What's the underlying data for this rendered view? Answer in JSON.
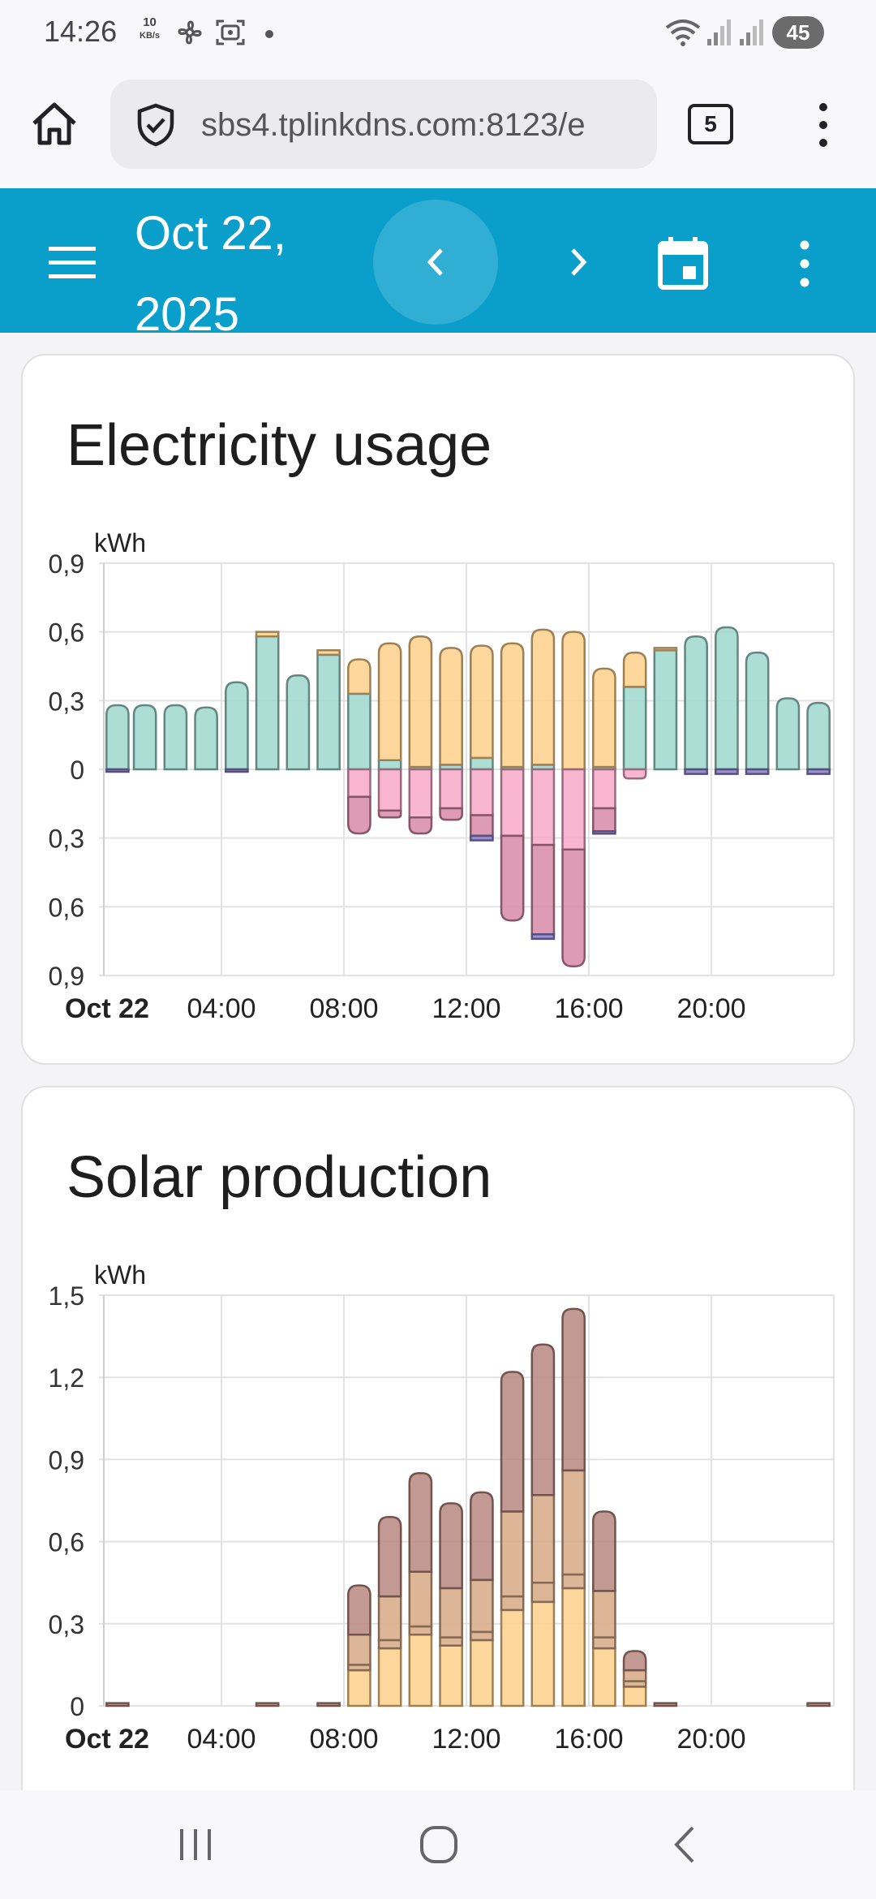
{
  "status_bar": {
    "time": "14:26",
    "speed_value": "10",
    "speed_unit": "KB/s",
    "battery": "45"
  },
  "browser": {
    "url": "sbs4.tplinkdns.com:8123/e",
    "tab_count": "5"
  },
  "header": {
    "date_line1": "Oct 22,",
    "date_line2": "2025"
  },
  "colors": {
    "header_bg": "#0a9fcb",
    "grid_consumption": "#9fd8cf",
    "solar": "#fdd08a",
    "battery_out": "#f7a9c9",
    "battery_in": "#d88aa8",
    "grid_in_strip": "#8a7fcf",
    "solar_dark": "#b88780",
    "solar_mid": "#d6a985"
  },
  "electricity_chart": {
    "title": "Electricity usage",
    "unit": "kWh",
    "y_ticks": [
      "0,9",
      "0,6",
      "0,3",
      "0",
      "0,3",
      "0,6",
      "0,9"
    ],
    "x_ticks": [
      "Oct 22",
      "04:00",
      "08:00",
      "12:00",
      "16:00",
      "20:00"
    ],
    "chart_data": {
      "type": "bar",
      "categories": [
        "00:00",
        "01:00",
        "02:00",
        "03:00",
        "04:00",
        "05:00",
        "06:00",
        "07:00",
        "08:00",
        "09:00",
        "10:00",
        "11:00",
        "12:00",
        "13:00",
        "14:00",
        "15:00",
        "16:00",
        "17:00",
        "18:00",
        "19:00",
        "20:00",
        "21:00",
        "22:00",
        "23:00"
      ],
      "ylim": [
        -0.9,
        0.9
      ],
      "series": [
        {
          "values": [
            0.28,
            0.28,
            0.28,
            0.27,
            0.38,
            0.58,
            0.41,
            0.5,
            0.33,
            0.04,
            0.01,
            0.02,
            0.05,
            0.01,
            0.02,
            0,
            0.01,
            0.36,
            0.52,
            0.58,
            0.62,
            0.51,
            0.31,
            0.29
          ]
        },
        {
          "values": [
            0,
            0,
            0,
            0,
            0,
            0.02,
            0,
            0.02,
            0.15,
            0.51,
            0.57,
            0.51,
            0.49,
            0.54,
            0.59,
            0.6,
            0.43,
            0.15,
            0.01,
            0,
            0,
            0,
            0,
            0
          ]
        },
        {
          "values": [
            0,
            0,
            0,
            0,
            0,
            0,
            0,
            0,
            -0.12,
            -0.18,
            -0.21,
            -0.17,
            -0.2,
            -0.29,
            -0.33,
            -0.35,
            -0.17,
            -0.04,
            0,
            0,
            0,
            0,
            0,
            0
          ]
        },
        {
          "values": [
            0,
            0,
            0,
            0,
            0,
            0,
            0,
            0,
            -0.16,
            -0.03,
            -0.07,
            -0.05,
            -0.09,
            -0.37,
            -0.39,
            -0.51,
            -0.1,
            0,
            0,
            0,
            0,
            0,
            0,
            0
          ]
        },
        {
          "values": [
            -0.01,
            0,
            0,
            0,
            -0.01,
            0,
            0,
            0,
            0,
            0,
            0,
            0,
            -0.02,
            0,
            -0.02,
            0,
            -0.01,
            0,
            0,
            -0.02,
            -0.02,
            -0.02,
            0,
            -0.02
          ]
        }
      ]
    }
  },
  "solar_chart": {
    "title": "Solar production",
    "unit": "kWh",
    "y_ticks": [
      "1,5",
      "1,2",
      "0,9",
      "0,6",
      "0,3",
      "0"
    ],
    "x_ticks": [
      "Oct 22",
      "04:00",
      "08:00",
      "12:00",
      "16:00",
      "20:00"
    ],
    "chart_data": {
      "type": "bar",
      "categories": [
        "00:00",
        "01:00",
        "02:00",
        "03:00",
        "04:00",
        "05:00",
        "06:00",
        "07:00",
        "08:00",
        "09:00",
        "10:00",
        "11:00",
        "12:00",
        "13:00",
        "14:00",
        "15:00",
        "16:00",
        "17:00",
        "18:00",
        "19:00",
        "20:00",
        "21:00",
        "22:00",
        "23:00"
      ],
      "ylim": [
        0,
        1.5
      ],
      "series": [
        {
          "values": [
            0,
            0,
            0,
            0,
            0,
            0,
            0,
            0,
            0.13,
            0.21,
            0.26,
            0.22,
            0.24,
            0.35,
            0.38,
            0.43,
            0.21,
            0.07,
            0,
            0,
            0,
            0,
            0,
            0
          ]
        },
        {
          "values": [
            0,
            0,
            0,
            0,
            0,
            0,
            0,
            0,
            0.02,
            0.03,
            0.03,
            0.03,
            0.03,
            0.05,
            0.07,
            0.05,
            0.04,
            0.02,
            0,
            0,
            0,
            0,
            0,
            0
          ]
        },
        {
          "values": [
            0,
            0,
            0,
            0,
            0,
            0,
            0,
            0,
            0.11,
            0.16,
            0.2,
            0.18,
            0.19,
            0.31,
            0.32,
            0.38,
            0.17,
            0.04,
            0,
            0,
            0,
            0,
            0,
            0
          ]
        },
        {
          "values": [
            0.01,
            0,
            0,
            0,
            0,
            0.01,
            0,
            0.01,
            0.18,
            0.29,
            0.36,
            0.31,
            0.32,
            0.51,
            0.55,
            0.59,
            0.29,
            0.07,
            0.01,
            0,
            0,
            0,
            0,
            0.01
          ]
        }
      ]
    }
  }
}
